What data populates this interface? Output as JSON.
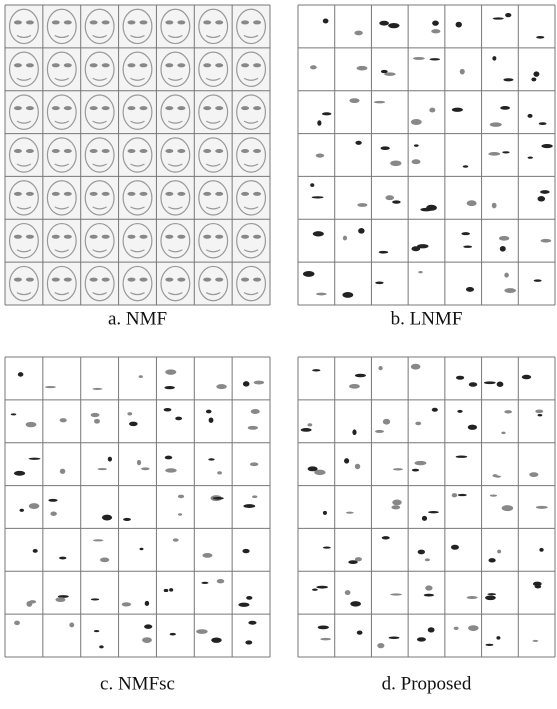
{
  "panels": [
    {
      "caption": "a. NMF"
    },
    {
      "caption": "b. LNMF"
    },
    {
      "caption": "c. NMFsc"
    },
    {
      "caption": "d. Proposed"
    }
  ]
}
